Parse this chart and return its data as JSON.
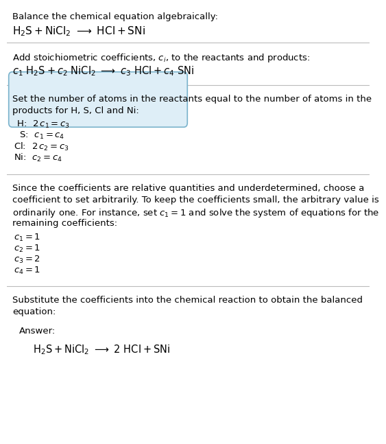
{
  "bg_color": "#ffffff",
  "text_color": "#000000",
  "line_color": "#bbbbbb",
  "title_line1": "Balance the chemical equation algebraically:",
  "section2_intro": "Add stoichiometric coefficients, $c_i$, to the reactants and products:",
  "section3_intro1": "Set the number of atoms in the reactants equal to the number of atoms in the",
  "section3_intro2": "products for H, S, Cl and Ni:",
  "section4_intro1": "Since the coefficients are relative quantities and underdetermined, choose a",
  "section4_intro2": "coefficient to set arbitrarily. To keep the coefficients small, the arbitrary value is",
  "section4_intro3": "ordinarily one. For instance, set $c_1 = 1$ and solve the system of equations for the",
  "section4_intro4": "remaining coefficients:",
  "section5_intro1": "Substitute the coefficients into the chemical reaction to obtain the balanced",
  "section5_intro2": "equation:",
  "answer_label": "Answer:",
  "answer_box_facecolor": "#deeef7",
  "answer_box_edgecolor": "#7ab3cc",
  "font_size_body": 9.5,
  "font_size_eq": 10.5
}
